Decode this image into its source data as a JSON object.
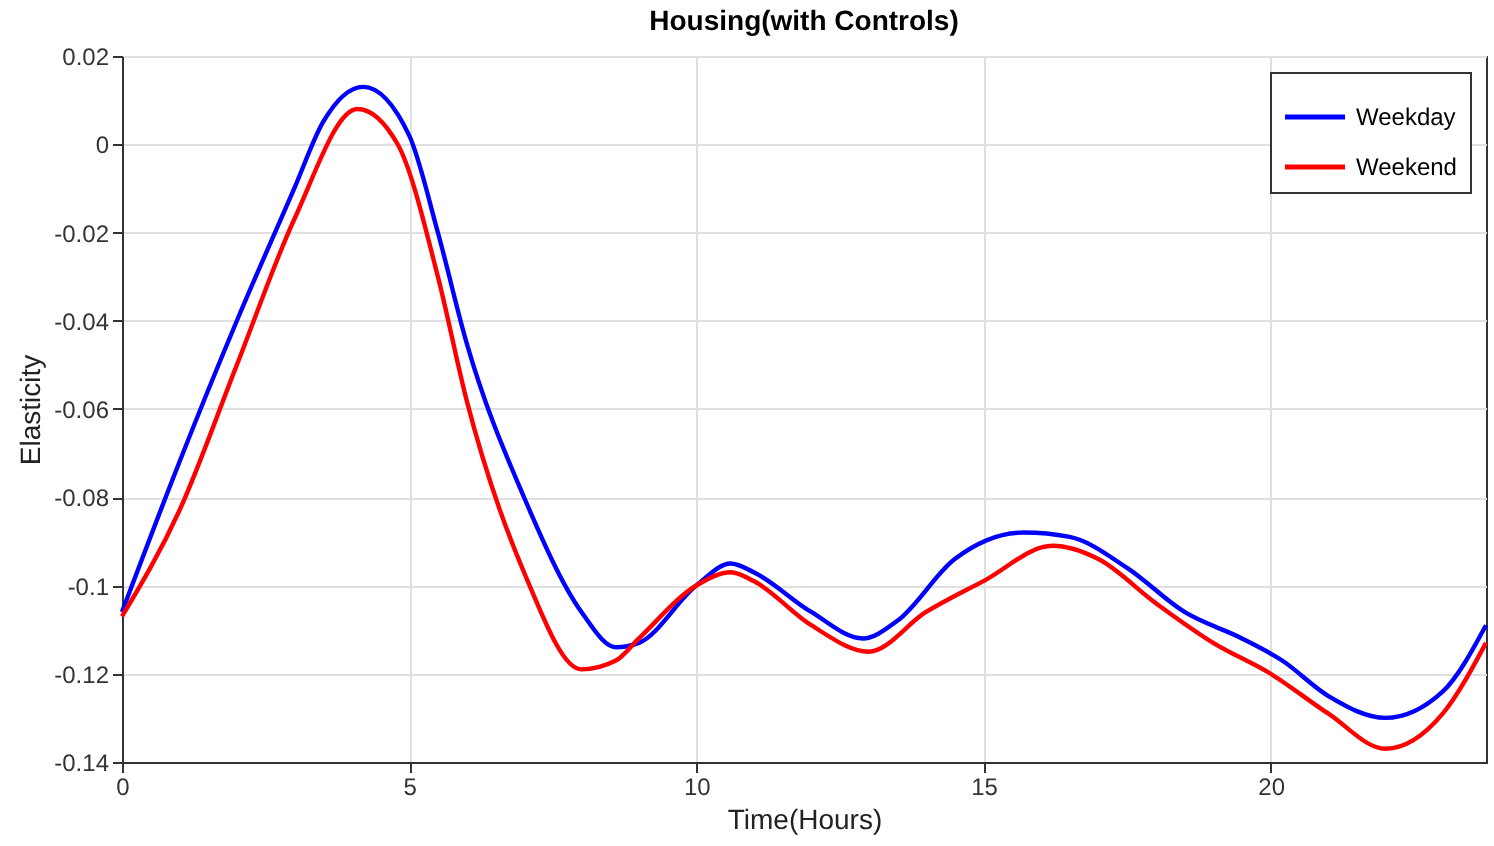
{
  "chart_data": {
    "type": "line",
    "title": "Housing(with Controls)",
    "xlabel": "Time(Hours)",
    "ylabel": "Elasticity",
    "xlim": [
      0,
      23.75
    ],
    "xticks": [
      0,
      5,
      10,
      15,
      20
    ],
    "ylim": [
      -0.14,
      0.02
    ],
    "yticks": [
      -0.14,
      -0.12,
      -0.1,
      -0.08,
      -0.06,
      -0.04,
      -0.02,
      0,
      0.02
    ],
    "grid": true,
    "legend": "top right",
    "line_style": "solid",
    "marker": "none",
    "series": [
      {
        "name": "Weekday",
        "color": "#0000ff",
        "x": [
          0,
          1,
          2,
          3,
          3.5,
          4.2,
          5,
          5.5,
          6,
          7,
          8,
          8.6,
          9,
          10,
          10.6,
          11,
          12,
          12.9,
          13.5,
          14.5,
          15.7,
          16.5,
          17.5,
          18.5,
          19.5,
          20.2,
          21,
          22,
          23,
          23.75
        ],
        "values": [
          -0.106,
          -0.072,
          -0.04,
          -0.01,
          0.005,
          0.013,
          0.002,
          -0.02,
          -0.045,
          -0.08,
          -0.106,
          -0.114,
          -0.113,
          -0.1,
          -0.095,
          -0.097,
          -0.106,
          -0.112,
          -0.108,
          -0.094,
          -0.088,
          -0.089,
          -0.096,
          -0.106,
          -0.112,
          -0.117,
          -0.125,
          -0.13,
          -0.124,
          -0.109
        ]
      },
      {
        "name": "Weekend",
        "color": "#ff0000",
        "x": [
          0,
          1,
          2,
          3,
          4.1,
          4.8,
          5.5,
          6,
          7,
          8,
          8.6,
          9,
          10,
          10.6,
          11,
          12,
          13,
          14,
          15,
          16.2,
          17,
          18,
          19,
          20,
          21,
          22,
          23,
          23.75
        ],
        "values": [
          -0.107,
          -0.083,
          -0.05,
          -0.017,
          0.008,
          0.0,
          -0.03,
          -0.058,
          -0.097,
          -0.119,
          -0.117,
          -0.112,
          -0.1,
          -0.097,
          -0.099,
          -0.109,
          -0.115,
          -0.106,
          -0.099,
          -0.091,
          -0.094,
          -0.104,
          -0.113,
          -0.12,
          -0.129,
          -0.137,
          -0.129,
          -0.113
        ]
      }
    ]
  }
}
